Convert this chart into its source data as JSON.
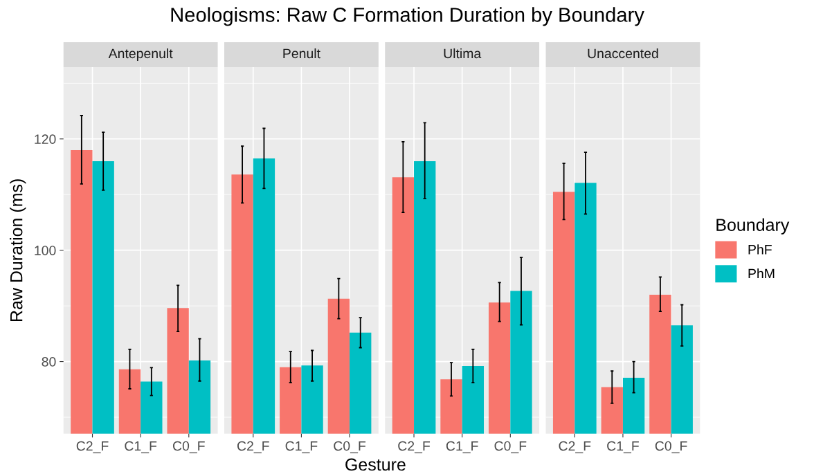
{
  "chart_data": [
    {
      "type": "bar",
      "title": "Neologisms: Raw C Formation Duration by Boundary",
      "subtitle": "Antepenult",
      "ylabel": "Raw Duration (ms)",
      "categories": [
        "C2_F",
        "C1_F",
        "C0_F"
      ],
      "ylim": [
        67.05,
        132.9
      ],
      "yticks": [
        80,
        100,
        120
      ],
      "grid": true,
      "tick_labels": "xy",
      "series": [
        {
          "color": "#f8766d",
          "values": [
            118.0,
            78.6,
            89.6
          ],
          "errors": [
            [
              111.9,
              124.2
            ],
            [
              75.1,
              82.2
            ],
            [
              85.4,
              93.7
            ]
          ]
        },
        {
          "color": "#00bfc4",
          "values": [
            116.0,
            76.4,
            80.2
          ],
          "errors": [
            [
              110.8,
              121.2
            ],
            [
              73.9,
              78.9
            ],
            [
              76.5,
              84.1
            ]
          ]
        }
      ]
    },
    {
      "type": "bar",
      "subtitle": "Penult",
      "xlabel": "Gesture",
      "categories": [
        "C2_F",
        "C1_F",
        "C0_F"
      ],
      "ylim": [
        67.05,
        132.9
      ],
      "yticks": [
        80,
        100,
        120
      ],
      "grid": true,
      "tick_labels": "x",
      "series": [
        {
          "color": "#f8766d",
          "values": [
            113.6,
            79.0,
            91.3
          ],
          "errors": [
            [
              108.5,
              118.7
            ],
            [
              76.2,
              81.8
            ],
            [
              87.7,
              94.9
            ]
          ]
        },
        {
          "color": "#00bfc4",
          "values": [
            116.5,
            79.3,
            85.2
          ],
          "errors": [
            [
              111.1,
              121.9
            ],
            [
              76.5,
              82.0
            ],
            [
              82.5,
              87.9
            ]
          ]
        }
      ]
    },
    {
      "type": "bar",
      "subtitle": "Ultima",
      "categories": [
        "C2_F",
        "C1_F",
        "C0_F"
      ],
      "ylim": [
        67.05,
        132.9
      ],
      "yticks": [
        80,
        100,
        120
      ],
      "grid": true,
      "tick_labels": "x",
      "series": [
        {
          "color": "#f8766d",
          "values": [
            113.1,
            76.8,
            90.6
          ],
          "errors": [
            [
              106.8,
              119.5
            ],
            [
              73.8,
              79.8
            ],
            [
              87.2,
              94.2
            ]
          ]
        },
        {
          "color": "#00bfc4",
          "values": [
            116.0,
            79.2,
            92.7
          ],
          "errors": [
            [
              109.3,
              122.9
            ],
            [
              76.2,
              82.2
            ],
            [
              86.6,
              98.7
            ]
          ]
        }
      ]
    },
    {
      "type": "bar",
      "subtitle": "Unaccented",
      "categories": [
        "C2_F",
        "C1_F",
        "C0_F"
      ],
      "ylim": [
        67.05,
        132.9
      ],
      "yticks": [
        80,
        100,
        120
      ],
      "grid": true,
      "tick_labels": "x",
      "legend": "right",
      "legend_title": "Boundary",
      "series": [
        {
          "name": "PhF",
          "color": "#f8766d",
          "values": [
            110.5,
            75.4,
            92.0
          ],
          "errors": [
            [
              105.5,
              115.6
            ],
            [
              72.5,
              78.3
            ],
            [
              89.0,
              95.2
            ]
          ]
        },
        {
          "name": "PhM",
          "color": "#00bfc4",
          "values": [
            112.1,
            77.1,
            86.5
          ],
          "errors": [
            [
              106.5,
              117.6
            ],
            [
              74.4,
              80.0
            ],
            [
              82.8,
              90.2
            ]
          ]
        }
      ]
    }
  ]
}
